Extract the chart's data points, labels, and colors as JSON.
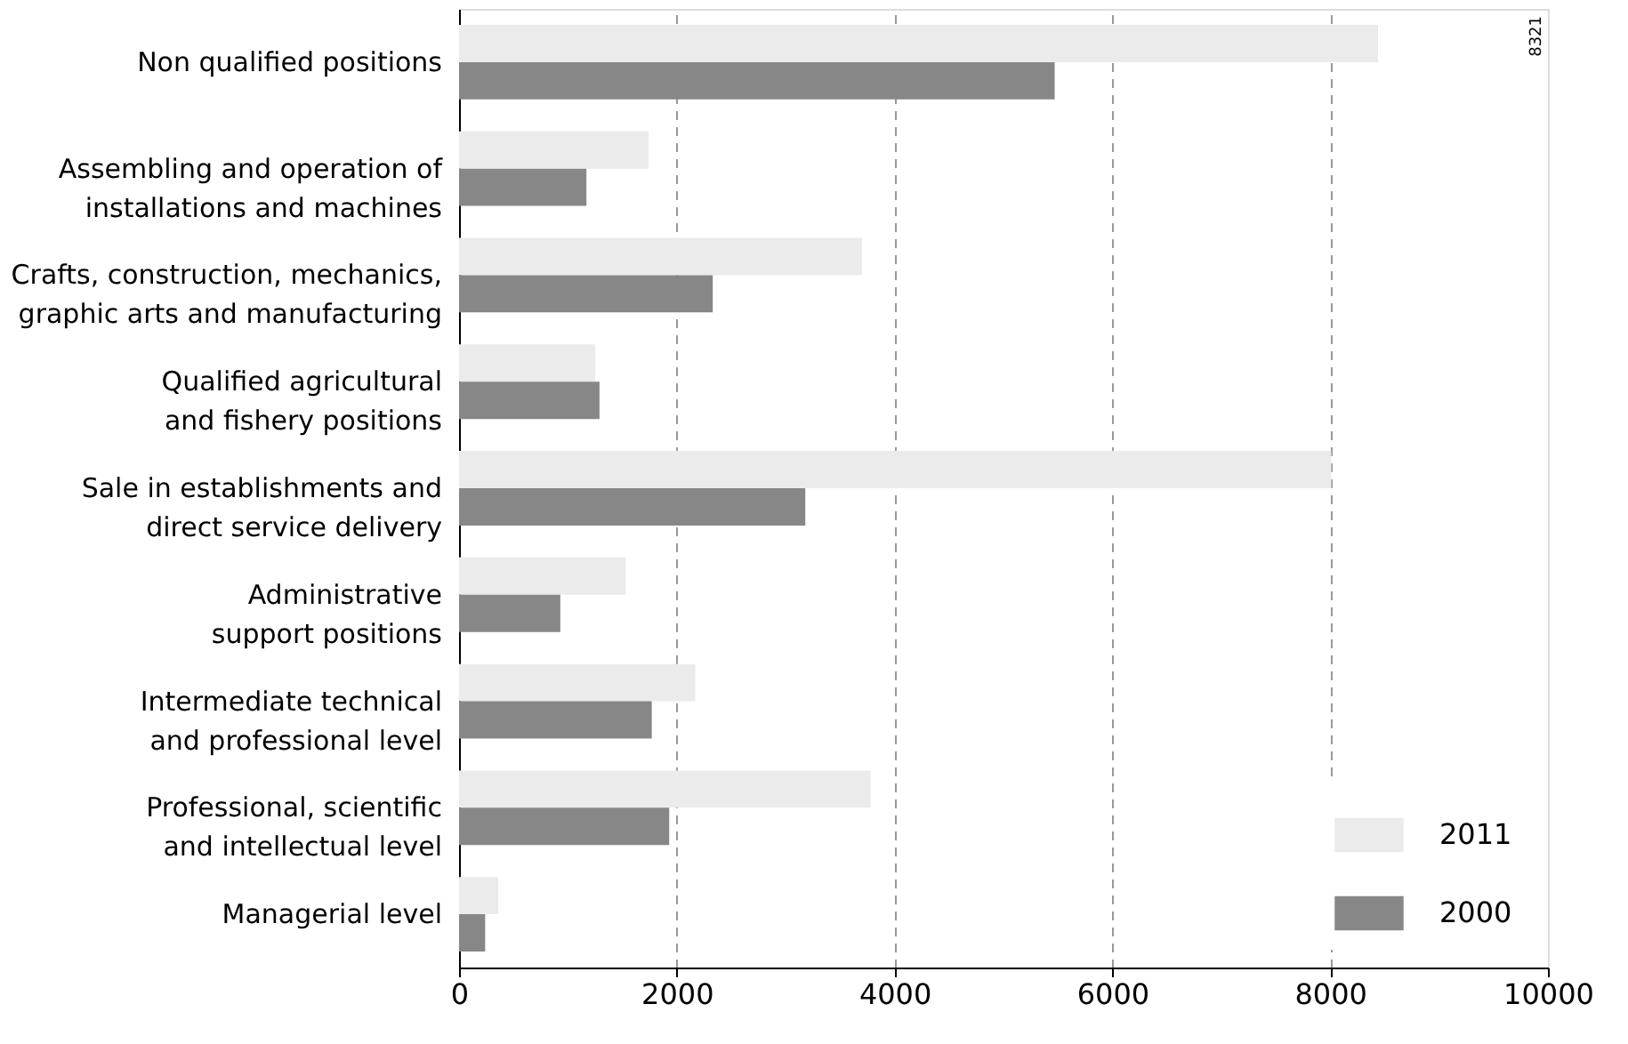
{
  "chart_data": {
    "type": "bar",
    "orientation": "horizontal",
    "categories": [
      "Non qualified positions",
      "Assembling and operation of installations and machines",
      "Crafts, construction, mechanics, graphic arts and manufacturing",
      "Qualified agricultural and fishery positions",
      "Sale in establishments and direct service delivery",
      "Administrative support positions",
      "Intermediate technical and professional level",
      "Professional, scientific and intellectual level",
      "Managerial level"
    ],
    "series": [
      {
        "name": "2011",
        "color": "#ebebeb",
        "values": [
          8440,
          1740,
          3700,
          1250,
          8010,
          1530,
          2170,
          3780,
          360
        ]
      },
      {
        "name": "2000",
        "color": "#878787",
        "values": [
          5470,
          1170,
          2330,
          1290,
          3180,
          930,
          1770,
          1930,
          240
        ]
      }
    ],
    "xlim": [
      0,
      10000
    ],
    "xticks": [
      0,
      2000,
      4000,
      6000,
      8000,
      10000
    ],
    "grid": "x",
    "legend": "bottom right",
    "annotations": [
      "8321"
    ]
  }
}
